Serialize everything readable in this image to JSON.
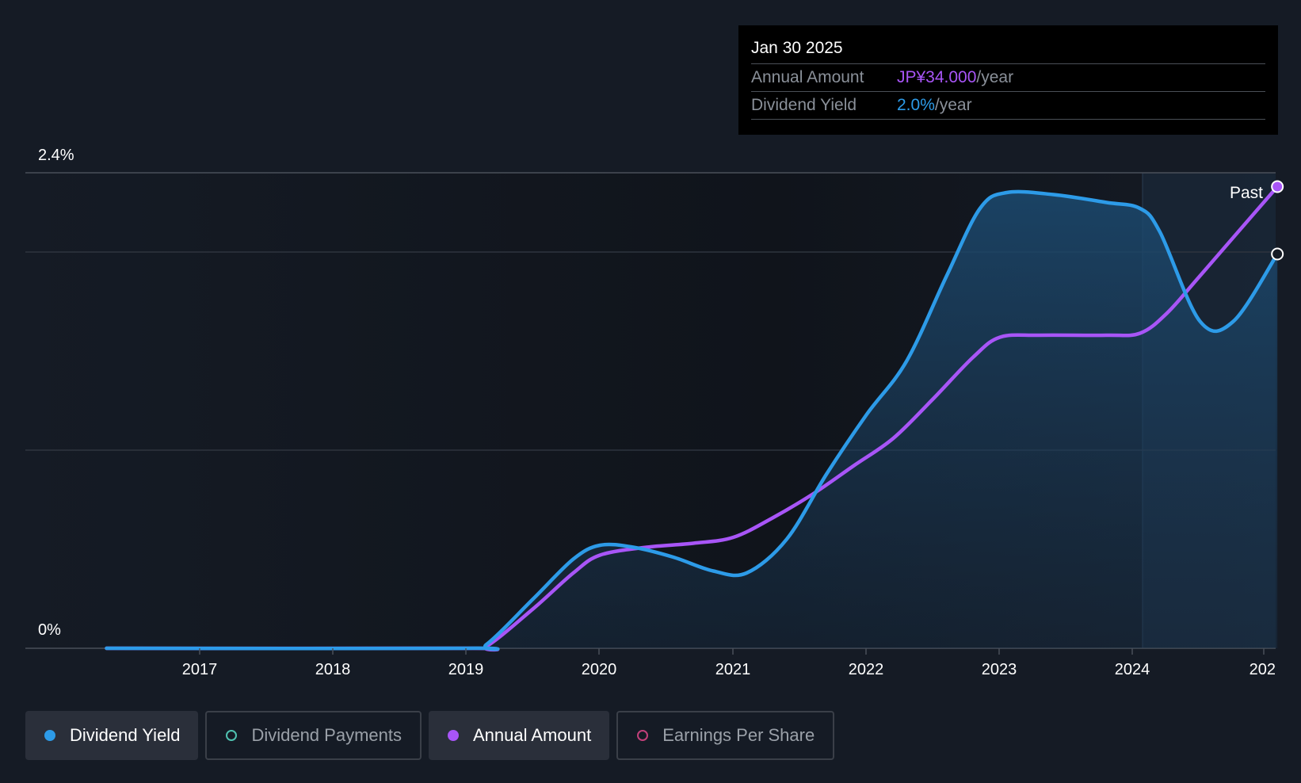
{
  "tooltip": {
    "date": "Jan 30 2025",
    "rows": [
      {
        "label": "Annual Amount",
        "value": "JP¥34.000",
        "unit": "/year",
        "color": "#a855f7"
      },
      {
        "label": "Dividend Yield",
        "value": "2.0%",
        "unit": "/year",
        "color": "#2d9be8"
      }
    ]
  },
  "chart_data": {
    "type": "line",
    "y_tick_labels": [
      "2.4%",
      "0%"
    ],
    "x_tick_labels": [
      "2017",
      "2018",
      "2019",
      "2020",
      "2021",
      "2022",
      "2023",
      "2024",
      "202"
    ],
    "ylim": [
      0,
      2.4
    ],
    "past_label": "Past",
    "series": [
      {
        "name": "Dividend Yield",
        "color": "#2d9be8",
        "unit": "%",
        "points": [
          [
            2016.3,
            0
          ],
          [
            2019.0,
            0
          ],
          [
            2019.15,
            0.02
          ],
          [
            2019.5,
            0.25
          ],
          [
            2019.8,
            0.45
          ],
          [
            2020.0,
            0.52
          ],
          [
            2020.25,
            0.51
          ],
          [
            2020.55,
            0.46
          ],
          [
            2020.85,
            0.39
          ],
          [
            2021.1,
            0.38
          ],
          [
            2021.4,
            0.55
          ],
          [
            2021.7,
            0.88
          ],
          [
            2022.0,
            1.18
          ],
          [
            2022.3,
            1.45
          ],
          [
            2022.6,
            1.88
          ],
          [
            2022.85,
            2.22
          ],
          [
            2023.05,
            2.3
          ],
          [
            2023.4,
            2.29
          ],
          [
            2023.8,
            2.25
          ],
          [
            2024.05,
            2.22
          ],
          [
            2024.2,
            2.1
          ],
          [
            2024.5,
            1.65
          ],
          [
            2024.75,
            1.65
          ],
          [
            2025.08,
            1.99
          ]
        ]
      },
      {
        "name": "Annual Amount",
        "color": "#a855f7",
        "unit": "JP¥",
        "points": [
          [
            2016.3,
            0
          ],
          [
            2019.0,
            0
          ],
          [
            2019.15,
            0.01
          ],
          [
            2019.5,
            0.2
          ],
          [
            2019.8,
            0.38
          ],
          [
            2020.0,
            0.47
          ],
          [
            2020.35,
            0.51
          ],
          [
            2020.7,
            0.53
          ],
          [
            2021.0,
            0.56
          ],
          [
            2021.3,
            0.66
          ],
          [
            2021.6,
            0.78
          ],
          [
            2021.9,
            0.92
          ],
          [
            2022.2,
            1.06
          ],
          [
            2022.5,
            1.26
          ],
          [
            2022.8,
            1.47
          ],
          [
            2023.0,
            1.57
          ],
          [
            2023.3,
            1.58
          ],
          [
            2023.8,
            1.58
          ],
          [
            2024.05,
            1.59
          ],
          [
            2024.25,
            1.69
          ],
          [
            2024.5,
            1.88
          ],
          [
            2025.08,
            2.33
          ]
        ]
      }
    ]
  },
  "legend": [
    {
      "label": "Dividend Yield",
      "active": true,
      "dot": "filled",
      "color": "#2d9be8"
    },
    {
      "label": "Dividend Payments",
      "active": false,
      "dot": "ring",
      "color": "#4fc1b0"
    },
    {
      "label": "Annual Amount",
      "active": true,
      "dot": "filled",
      "color": "#a855f7"
    },
    {
      "label": "Earnings Per Share",
      "active": false,
      "dot": "ring",
      "color": "#c2407a"
    }
  ]
}
